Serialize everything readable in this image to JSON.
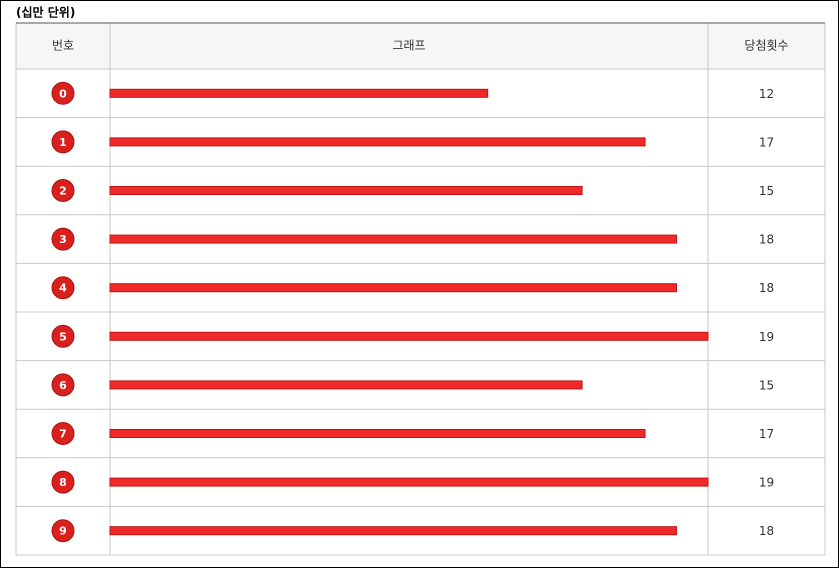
{
  "chart_data": {
    "type": "bar",
    "title": "(십만 단위)",
    "headers": [
      "번호",
      "그래프",
      "당첨횟수"
    ],
    "categories": [
      "0",
      "1",
      "2",
      "3",
      "4",
      "5",
      "6",
      "7",
      "8",
      "9"
    ],
    "values": [
      12,
      17,
      15,
      18,
      18,
      19,
      15,
      17,
      19,
      18
    ],
    "color": "#f02a2a",
    "xlim": [
      0,
      19
    ]
  }
}
